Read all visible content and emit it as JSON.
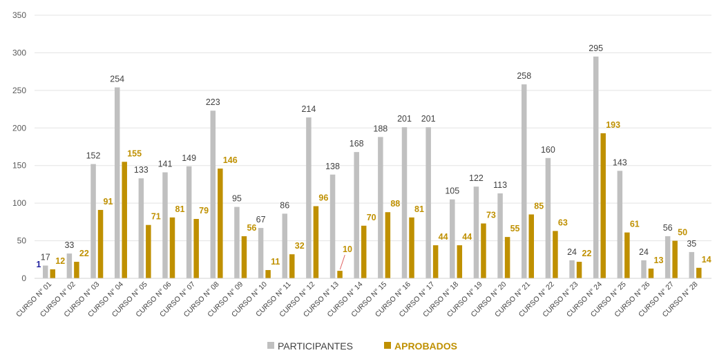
{
  "chart_data": {
    "type": "bar",
    "title": "",
    "xlabel": "",
    "ylabel": "",
    "ylim": [
      0,
      350
    ],
    "yticks": [
      "0",
      "50",
      "100",
      "150",
      "200",
      "250",
      "300",
      "350"
    ],
    "grid": true,
    "legend_position": "bottom",
    "categories": [
      "CURSO N° 01",
      "CURSO N° 02",
      "CURSO N° 03",
      "CURSO N° 04",
      "CURSO N° 05",
      "CURSO N° 06",
      "CURSO N° 07",
      "CURSO N° 08",
      "CURSO N° 09",
      "CURSO N° 10",
      "CURSO N° 11",
      "CURSO N° 12",
      "CURSO N° 13",
      "CURSO N° 14",
      "CURSO N° 15",
      "CURSO N° 16",
      "CURSO N° 17",
      "CURSO N° 18",
      "CURSO N° 19",
      "CURSO N° 20",
      "CURSO N° 21",
      "CURSO N° 22",
      "CURSO N° 23",
      "CURSO N° 24",
      "CURSO N° 25",
      "CURSO N° 26",
      "CURSO N° 27",
      "CURSO N° 28"
    ],
    "series": [
      {
        "name": "PARTICIPANTES",
        "color": "#c0c0c0",
        "label_color": "#404040",
        "values": [
          17,
          33,
          152,
          254,
          133,
          141,
          149,
          223,
          95,
          67,
          86,
          214,
          138,
          168,
          188,
          201,
          201,
          105,
          122,
          113,
          258,
          160,
          24,
          295,
          143,
          24,
          56,
          35
        ]
      },
      {
        "name": "APROBADOS",
        "color": "#bf9000",
        "label_color": "#bf9000",
        "values": [
          12,
          22,
          91,
          155,
          71,
          81,
          79,
          146,
          56,
          11,
          32,
          96,
          10,
          70,
          88,
          81,
          44,
          44,
          73,
          55,
          85,
          63,
          22,
          193,
          61,
          13,
          50,
          14
        ]
      }
    ],
    "annotations": [
      {
        "text": "1",
        "color": "#1f1f9e"
      }
    ]
  }
}
